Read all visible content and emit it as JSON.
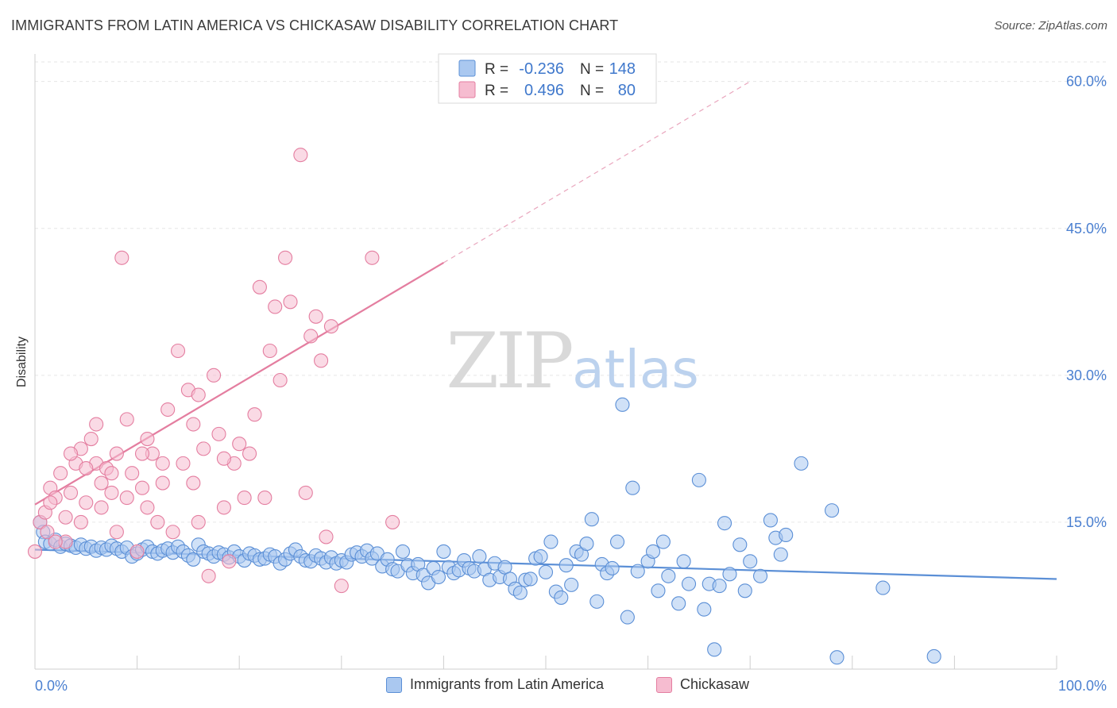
{
  "title": "IMMIGRANTS FROM LATIN AMERICA VS CHICKASAW DISABILITY CORRELATION CHART",
  "source": "Source: ZipAtlas.com",
  "watermark": {
    "zip": "ZIP",
    "atlas": "atlas"
  },
  "legend": {
    "r_label": "R =",
    "n_label": "N =",
    "rows": [
      {
        "r": "-0.236",
        "n": "148",
        "fill": "#aac8f0",
        "stroke": "#5b8fd6"
      },
      {
        "r": "0.496",
        "n": "80",
        "fill": "#f6bcd0",
        "stroke": "#e47ea0"
      }
    ]
  },
  "bottom_legend": [
    {
      "label": "Immigrants from Latin America",
      "fill": "#aac8f0",
      "stroke": "#5b8fd6"
    },
    {
      "label": "Chickasaw",
      "fill": "#f6bcd0",
      "stroke": "#e47ea0"
    }
  ],
  "chart_data": {
    "type": "scatter",
    "title": "IMMIGRANTS FROM LATIN AMERICA VS CHICKASAW DISABILITY CORRELATION CHART",
    "xlabel": "",
    "ylabel": "Disability",
    "xlim": [
      0,
      100
    ],
    "ylim": [
      0,
      62
    ],
    "x_tick_labels": [
      "0.0%",
      "100.0%"
    ],
    "y_ticks": [
      15,
      30,
      45,
      60
    ],
    "y_tick_labels": [
      "15.0%",
      "30.0%",
      "45.0%",
      "60.0%"
    ],
    "grid": true,
    "series": [
      {
        "name": "Immigrants from Latin America",
        "color": "#5b8fd6",
        "fill": "#aac8f0",
        "trend": {
          "x0": 0,
          "y0": 12.2,
          "x1": 100,
          "y1": 9.2
        },
        "points": [
          [
            0.5,
            15
          ],
          [
            0.8,
            14
          ],
          [
            1,
            13
          ],
          [
            1.5,
            12.8
          ],
          [
            2,
            13.2
          ],
          [
            2.5,
            12.5
          ],
          [
            3,
            12.8
          ],
          [
            3.5,
            12.6
          ],
          [
            4,
            12.4
          ],
          [
            4.5,
            12.7
          ],
          [
            5,
            12.3
          ],
          [
            5.5,
            12.5
          ],
          [
            6,
            12.1
          ],
          [
            6.5,
            12.4
          ],
          [
            7,
            12.2
          ],
          [
            7.5,
            12.6
          ],
          [
            8,
            12.3
          ],
          [
            8.5,
            12
          ],
          [
            9,
            12.4
          ],
          [
            9.5,
            11.5
          ],
          [
            10,
            11.8
          ],
          [
            10.5,
            12.2
          ],
          [
            11,
            12.5
          ],
          [
            11.5,
            12
          ],
          [
            12,
            11.8
          ],
          [
            12.5,
            12.1
          ],
          [
            13,
            12.3
          ],
          [
            13.5,
            11.9
          ],
          [
            14,
            12.5
          ],
          [
            14.5,
            12
          ],
          [
            15,
            11.6
          ],
          [
            15.5,
            11.2
          ],
          [
            16,
            12.7
          ],
          [
            16.5,
            12
          ],
          [
            17,
            11.8
          ],
          [
            17.5,
            11.5
          ],
          [
            18,
            11.9
          ],
          [
            18.5,
            11.7
          ],
          [
            19,
            11.4
          ],
          [
            19.5,
            12
          ],
          [
            20,
            11.5
          ],
          [
            20.5,
            11.1
          ],
          [
            21,
            11.8
          ],
          [
            21.5,
            11.6
          ],
          [
            22,
            11.2
          ],
          [
            22.5,
            11.3
          ],
          [
            23,
            11.7
          ],
          [
            23.5,
            11.5
          ],
          [
            24,
            10.8
          ],
          [
            24.5,
            11.2
          ],
          [
            25,
            11.8
          ],
          [
            25.5,
            12.2
          ],
          [
            26,
            11.5
          ],
          [
            26.5,
            11.1
          ],
          [
            27,
            11
          ],
          [
            27.5,
            11.6
          ],
          [
            28,
            11.3
          ],
          [
            28.5,
            10.9
          ],
          [
            29,
            11.4
          ],
          [
            29.5,
            10.8
          ],
          [
            30,
            11.1
          ],
          [
            30.5,
            10.9
          ],
          [
            31,
            11.7
          ],
          [
            31.5,
            11.9
          ],
          [
            32,
            11.5
          ],
          [
            32.5,
            12.1
          ],
          [
            33,
            11.3
          ],
          [
            33.5,
            11.8
          ],
          [
            34,
            10.5
          ],
          [
            34.5,
            11.2
          ],
          [
            35,
            10.2
          ],
          [
            35.5,
            10
          ],
          [
            36,
            12
          ],
          [
            36.5,
            10.6
          ],
          [
            37,
            9.8
          ],
          [
            37.5,
            10.7
          ],
          [
            38,
            9.6
          ],
          [
            38.5,
            8.8
          ],
          [
            39,
            10.3
          ],
          [
            39.5,
            9.4
          ],
          [
            40,
            12
          ],
          [
            40.5,
            10.4
          ],
          [
            41,
            9.8
          ],
          [
            41.5,
            10.1
          ],
          [
            42,
            11.1
          ],
          [
            42.5,
            10.3
          ],
          [
            43,
            10
          ],
          [
            43.5,
            11.5
          ],
          [
            44,
            10.2
          ],
          [
            44.5,
            9.1
          ],
          [
            45,
            10.8
          ],
          [
            45.5,
            9.4
          ],
          [
            46,
            10.4
          ],
          [
            46.5,
            9.2
          ],
          [
            47,
            8.2
          ],
          [
            47.5,
            7.8
          ],
          [
            48,
            9.1
          ],
          [
            48.5,
            9.2
          ],
          [
            49,
            11.3
          ],
          [
            49.5,
            11.5
          ],
          [
            50,
            9.9
          ],
          [
            50.5,
            13
          ],
          [
            51,
            7.9
          ],
          [
            51.5,
            7.3
          ],
          [
            52,
            10.6
          ],
          [
            52.5,
            8.6
          ],
          [
            53,
            12
          ],
          [
            53.5,
            11.7
          ],
          [
            54,
            12.8
          ],
          [
            54.5,
            15.3
          ],
          [
            55,
            6.9
          ],
          [
            55.5,
            10.7
          ],
          [
            56,
            9.8
          ],
          [
            56.5,
            10.3
          ],
          [
            57,
            13
          ],
          [
            57.5,
            27
          ],
          [
            58,
            5.3
          ],
          [
            58.5,
            18.5
          ],
          [
            59,
            10
          ],
          [
            60,
            11
          ],
          [
            60.5,
            12
          ],
          [
            61,
            8
          ],
          [
            61.5,
            13
          ],
          [
            62,
            9.5
          ],
          [
            63,
            6.7
          ],
          [
            63.5,
            11
          ],
          [
            64,
            8.7
          ],
          [
            65,
            19.3
          ],
          [
            65.5,
            6.1
          ],
          [
            66,
            8.7
          ],
          [
            66.5,
            2
          ],
          [
            67,
            8.5
          ],
          [
            67.5,
            14.9
          ],
          [
            68,
            9.7
          ],
          [
            69,
            12.7
          ],
          [
            69.5,
            8
          ],
          [
            70,
            11
          ],
          [
            71,
            9.5
          ],
          [
            72,
            15.2
          ],
          [
            72.5,
            13.4
          ],
          [
            73,
            11.7
          ],
          [
            73.5,
            13.7
          ],
          [
            75,
            21
          ],
          [
            78,
            16.2
          ],
          [
            78.5,
            1.2
          ],
          [
            83,
            8.3
          ],
          [
            88,
            1.3
          ]
        ]
      },
      {
        "name": "Chickasaw",
        "color": "#e47ea0",
        "fill": "#f6bcd0",
        "trend": {
          "x0": 0,
          "y0": 16.8,
          "x1": 40,
          "y1": 41.5
        },
        "trend_dashed": {
          "x0": 40,
          "y0": 41.5,
          "x1": 70,
          "y1": 60
        },
        "points": [
          [
            0,
            12
          ],
          [
            0.5,
            15
          ],
          [
            1,
            16
          ],
          [
            1.2,
            14
          ],
          [
            1.5,
            18.5
          ],
          [
            2,
            17.5
          ],
          [
            2.5,
            20
          ],
          [
            3,
            15.5
          ],
          [
            3.5,
            18
          ],
          [
            4,
            21
          ],
          [
            4.5,
            22.5
          ],
          [
            5,
            17
          ],
          [
            5.5,
            23.5
          ],
          [
            6,
            21
          ],
          [
            6.5,
            19
          ],
          [
            7,
            20.5
          ],
          [
            7.5,
            18
          ],
          [
            8,
            22
          ],
          [
            8.5,
            42
          ],
          [
            9,
            17.5
          ],
          [
            9.5,
            20
          ],
          [
            10,
            12
          ],
          [
            10.5,
            18.5
          ],
          [
            11,
            16.5
          ],
          [
            11.5,
            22
          ],
          [
            12,
            15
          ],
          [
            12.5,
            21
          ],
          [
            13,
            26.5
          ],
          [
            14,
            32.5
          ],
          [
            14.5,
            21
          ],
          [
            15,
            28.5
          ],
          [
            15.5,
            19
          ],
          [
            16,
            15
          ],
          [
            16.5,
            22.5
          ],
          [
            17,
            9.5
          ],
          [
            18,
            24
          ],
          [
            18.5,
            16.5
          ],
          [
            19,
            11
          ],
          [
            19.5,
            21
          ],
          [
            20,
            23
          ],
          [
            20.5,
            17.5
          ],
          [
            21,
            22
          ],
          [
            21.5,
            26
          ],
          [
            22,
            39
          ],
          [
            22.5,
            17.5
          ],
          [
            23,
            32.5
          ],
          [
            23.5,
            37
          ],
          [
            24,
            29.5
          ],
          [
            24.5,
            42
          ],
          [
            25,
            37.5
          ],
          [
            26,
            52.5
          ],
          [
            26.5,
            18
          ],
          [
            27,
            34
          ],
          [
            27.5,
            36
          ],
          [
            28,
            31.5
          ],
          [
            28.5,
            13.5
          ],
          [
            29,
            35
          ],
          [
            30,
            8.5
          ],
          [
            33,
            42
          ],
          [
            35,
            15
          ],
          [
            3,
            13
          ],
          [
            6.5,
            16.5
          ],
          [
            8,
            14
          ],
          [
            9,
            25.5
          ],
          [
            10.5,
            22
          ],
          [
            12.5,
            19
          ],
          [
            5,
            20.5
          ],
          [
            4.5,
            15
          ],
          [
            2,
            13
          ],
          [
            1.5,
            17
          ],
          [
            11,
            23.5
          ],
          [
            13.5,
            14
          ],
          [
            16,
            28
          ],
          [
            18.5,
            21.5
          ],
          [
            17.5,
            30
          ],
          [
            15.5,
            25
          ],
          [
            7.5,
            20
          ],
          [
            6,
            25
          ],
          [
            3.5,
            22
          ]
        ]
      }
    ]
  }
}
